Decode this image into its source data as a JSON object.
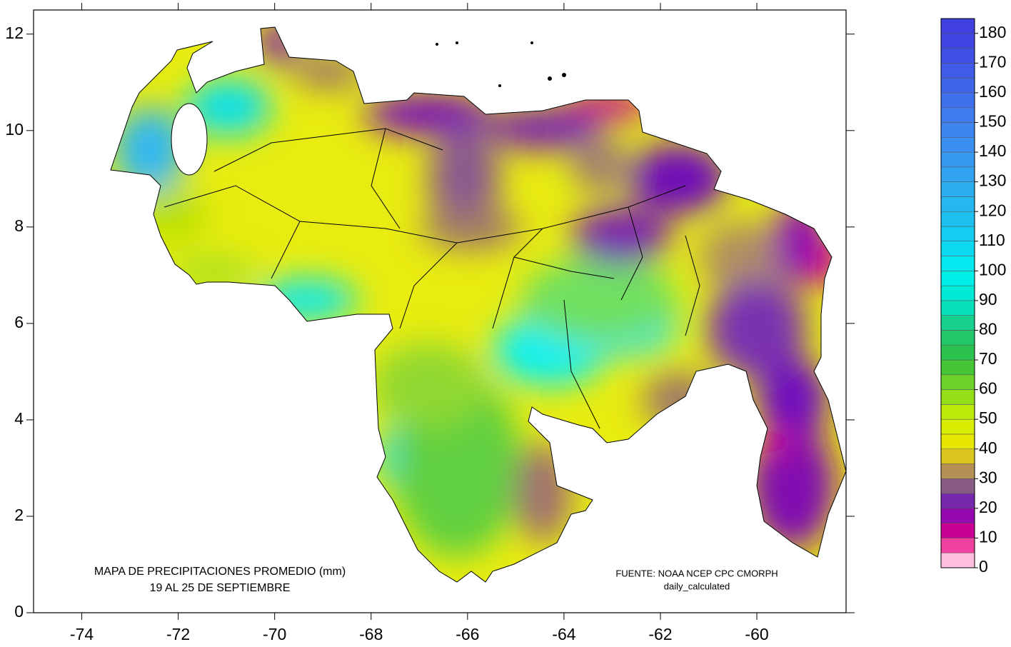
{
  "map": {
    "xlim": [
      -75,
      -58.15
    ],
    "ylim": [
      0,
      12.5
    ],
    "xticks": [
      -74,
      -72,
      -70,
      -68,
      -66,
      -64,
      -62,
      -60
    ],
    "yticks": [
      0,
      2,
      4,
      6,
      8,
      10,
      12
    ],
    "title": [
      "MAPA DE PRECIPITACIONES PROMEDIO (mm)",
      "19 AL 25 DE SEPTIEMBRE"
    ],
    "source": [
      "FUENTE: NOAA NCEP CPC CMORPH",
      "daily_calculated"
    ],
    "colorbar": {
      "lim": [
        0,
        185
      ],
      "bin_step": 5,
      "ticks": [
        0,
        10,
        20,
        30,
        40,
        50,
        60,
        70,
        80,
        90,
        100,
        110,
        120,
        130,
        140,
        150,
        160,
        170,
        180
      ],
      "color_stops": [
        [
          0,
          "#ffffff"
        ],
        [
          5,
          "#ff80c0"
        ],
        [
          10,
          "#e0007f"
        ],
        [
          15,
          "#b000a8"
        ],
        [
          20,
          "#7a10b8"
        ],
        [
          25,
          "#7040a0"
        ],
        [
          30,
          "#a07868"
        ],
        [
          35,
          "#c8a840"
        ],
        [
          40,
          "#f0e400"
        ],
        [
          50,
          "#d0f000"
        ],
        [
          60,
          "#80d820"
        ],
        [
          70,
          "#30c040"
        ],
        [
          80,
          "#20c878"
        ],
        [
          90,
          "#00e8d0"
        ],
        [
          100,
          "#00f0f0"
        ],
        [
          110,
          "#10d0f0"
        ],
        [
          130,
          "#30a8f0"
        ],
        [
          150,
          "#4080f0"
        ],
        [
          180,
          "#4040e0"
        ]
      ]
    }
  }
}
